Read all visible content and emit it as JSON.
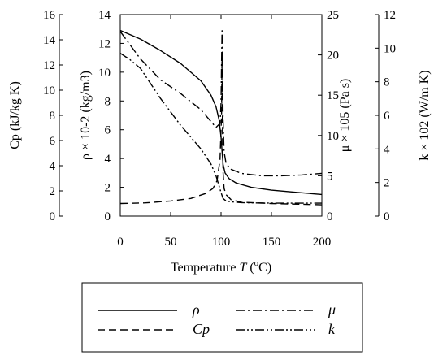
{
  "chart_data": {
    "type": "line",
    "xlabel": {
      "prefix": "Temperature ",
      "var": "T",
      "unit": "(",
      "sup": "o",
      "unit_end": "C)"
    },
    "xlim": [
      0,
      200
    ],
    "xticks": [
      "0",
      "50",
      "100",
      "150",
      "200"
    ],
    "axes": {
      "cp": {
        "label": "Cp (kJ/kg K)",
        "lim": [
          0,
          16
        ],
        "ticks": [
          "0",
          "2",
          "4",
          "6",
          "8",
          "10",
          "12",
          "14",
          "16"
        ]
      },
      "rho": {
        "label": "ρ × 10-2 (kg/m3)",
        "lim": [
          0,
          14
        ],
        "ticks": [
          "0",
          "2",
          "4",
          "6",
          "8",
          "10",
          "12",
          "14"
        ]
      },
      "mu": {
        "label": "μ × 105 (Pa s)",
        "lim": [
          0,
          25
        ],
        "ticks": [
          "0",
          "5",
          "10",
          "15",
          "20",
          "25"
        ]
      },
      "k": {
        "label": "k × 102 (W/m K)",
        "lim": [
          0,
          12
        ],
        "ticks": [
          "0",
          "2",
          "4",
          "6",
          "8",
          "10",
          "12"
        ]
      }
    },
    "series": [
      {
        "name": "ρ",
        "axis": "rho",
        "style": "solid",
        "x": [
          0,
          20,
          40,
          60,
          80,
          90,
          95,
          98,
          100,
          101,
          102,
          104,
          108,
          115,
          130,
          150,
          175,
          200
        ],
        "y": [
          12.9,
          12.3,
          11.5,
          10.6,
          9.4,
          8.4,
          7.6,
          6.7,
          5.5,
          4.5,
          3.6,
          3.0,
          2.6,
          2.3,
          2.0,
          1.8,
          1.65,
          1.5
        ]
      },
      {
        "name": "Cp",
        "axis": "cp",
        "style": "dash",
        "x": [
          0,
          25,
          50,
          70,
          85,
          92,
          96,
          99,
          100.5,
          101,
          101.5,
          102,
          103,
          105,
          110,
          120,
          150,
          200
        ],
        "y": [
          1.0,
          1.05,
          1.2,
          1.4,
          1.8,
          2.2,
          2.8,
          4.5,
          8.0,
          13.0,
          6.0,
          3.5,
          2.2,
          1.7,
          1.3,
          1.1,
          1.0,
          0.9
        ]
      },
      {
        "name": "μ",
        "axis": "mu",
        "style": "dashdot",
        "x": [
          0,
          10,
          20,
          40,
          60,
          80,
          95,
          99,
          100,
          100.5,
          101,
          101.5,
          102,
          103,
          105,
          110,
          120,
          140,
          160,
          180,
          200
        ],
        "y": [
          22.9,
          21.2,
          19.5,
          16.9,
          15.2,
          13.2,
          11.0,
          11.5,
          14.0,
          19.0,
          23.0,
          19.0,
          12.0,
          8.0,
          6.5,
          5.8,
          5.3,
          5.0,
          5.0,
          5.1,
          5.3
        ]
      },
      {
        "name": "k",
        "axis": "k",
        "style": "dashdotdot",
        "x": [
          0,
          10,
          20,
          40,
          60,
          80,
          90,
          95,
          100,
          102,
          105,
          110,
          120,
          140,
          160,
          200
        ],
        "y": [
          9.7,
          9.3,
          8.8,
          7.0,
          5.4,
          4.0,
          3.1,
          2.4,
          1.4,
          1.05,
          0.9,
          0.85,
          0.8,
          0.78,
          0.77,
          0.77
        ]
      }
    ],
    "legend": {
      "placement": "bottom",
      "ncol": 2
    }
  }
}
